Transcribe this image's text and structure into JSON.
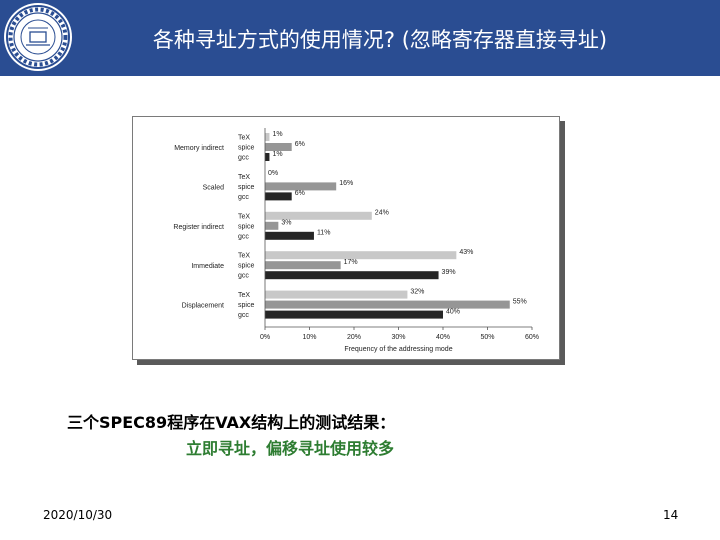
{
  "slide": {
    "title": "各种寻址方式的使用情况? (忽略寄存器直接寻址)",
    "caption_line1": "三个SPEC89程序在VAX结构上的测试结果：",
    "caption_line2": "立即寻址，偏移寻址使用较多",
    "date": "2020/10/30",
    "page": "14"
  },
  "colors": {
    "header": "#2a4d92",
    "TeX": "#c8c8c8",
    "spice": "#969696",
    "gcc": "#262626",
    "caption_highlight": "#2e7d32"
  },
  "chart_data": {
    "type": "bar",
    "orientation": "horizontal",
    "categories": [
      "Memory indirect",
      "Scaled",
      "Register indirect",
      "Immediate",
      "Displacement"
    ],
    "series": [
      {
        "name": "TeX",
        "values": [
          1,
          0,
          24,
          43,
          32
        ]
      },
      {
        "name": "spice",
        "values": [
          6,
          16,
          3,
          17,
          55
        ]
      },
      {
        "name": "gcc",
        "values": [
          1,
          6,
          11,
          39,
          40
        ]
      }
    ],
    "value_labels": [
      [
        "1%",
        "6%",
        "1%"
      ],
      [
        "0%",
        "16%",
        "6%"
      ],
      [
        "24%",
        "3%",
        "11%"
      ],
      [
        "43%",
        "17%",
        "39%"
      ],
      [
        "32%",
        "55%",
        "40%"
      ]
    ],
    "x_ticks": [
      "0%",
      "10%",
      "20%",
      "30%",
      "40%",
      "50%",
      "60%"
    ],
    "xlabel": "Frequency of the addressing mode",
    "xlim": [
      0,
      60
    ],
    "grid": false
  }
}
